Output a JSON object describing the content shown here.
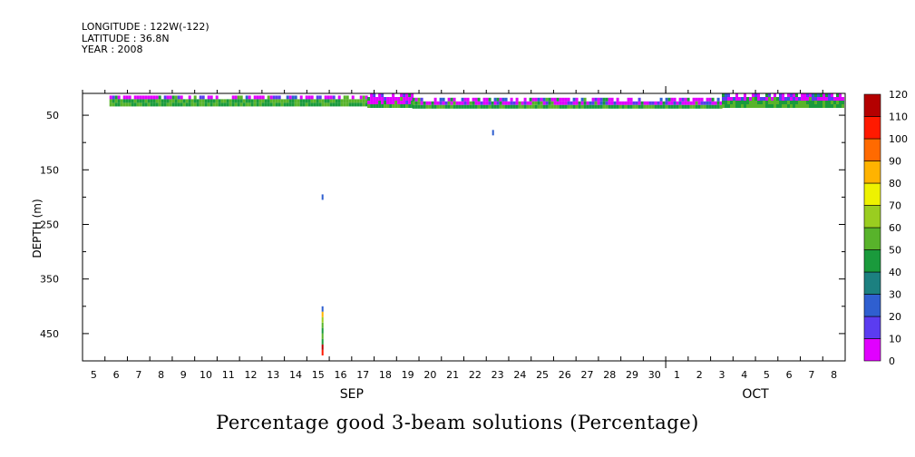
{
  "header": {
    "longitude": "LONGITUDE : 122W(-122)",
    "latitude": "LATITUDE : 36.8N",
    "year": "YEAR : 2008"
  },
  "chart_data": {
    "type": "heatmap",
    "title": "Percentage good 3-beam solutions (Percentage)",
    "ylabel": "DEPTH (m)",
    "xlabel": "",
    "ylim": [
      500,
      10
    ],
    "y_ticks": [
      50,
      150,
      250,
      350,
      450
    ],
    "x_days": [
      "5",
      "6",
      "7",
      "8",
      "9",
      "10",
      "11",
      "12",
      "13",
      "14",
      "15",
      "16",
      "17",
      "18",
      "19",
      "20",
      "21",
      "22",
      "23",
      "24",
      "25",
      "26",
      "27",
      "28",
      "29",
      "30",
      "1",
      "2",
      "3",
      "4",
      "5",
      "6",
      "7",
      "8"
    ],
    "x_range_days": [
      4.5,
      38.5
    ],
    "month_labels": [
      {
        "label": "SEP",
        "at_day": 16.5
      },
      {
        "label": "OCT",
        "at_day": 34.5
      }
    ],
    "colorbar": {
      "levels": [
        0,
        10,
        20,
        30,
        40,
        50,
        60,
        70,
        80,
        90,
        100,
        110,
        120
      ],
      "colors": [
        "#e100ff",
        "#5b3cf0",
        "#2f5fd0",
        "#1c8080",
        "#1a9a3c",
        "#58b32b",
        "#9acd20",
        "#eef200",
        "#ffb300",
        "#ff6a00",
        "#ff1a00",
        "#b40000"
      ]
    },
    "surface_band": {
      "description_note": "near-surface band of low values (mostly 0-20%) with some 40-60%",
      "segments": [
        {
          "day_start": 5.7,
          "day_end": 17.2,
          "depth_top": 14,
          "depth_bottom": 30
        },
        {
          "day_start": 17.2,
          "day_end": 19.2,
          "depth_top": 10,
          "depth_bottom": 35
        },
        {
          "day_start": 19.2,
          "day_end": 33.0,
          "depth_top": 18,
          "depth_bottom": 35
        },
        {
          "day_start": 33.0,
          "day_end": 38.4,
          "depth_top": 10,
          "depth_bottom": 30
        }
      ]
    },
    "isolated_points": [
      {
        "day": 22.8,
        "depth": 82,
        "value": 20
      },
      {
        "day": 15.2,
        "depth": 200,
        "value": 20
      },
      {
        "day": 15.2,
        "depth": 405,
        "value": 20
      },
      {
        "day": 15.2,
        "depth": 415,
        "value": 80
      },
      {
        "day": 15.2,
        "depth": 425,
        "value": 60
      },
      {
        "day": 15.2,
        "depth": 435,
        "value": 50
      },
      {
        "day": 15.2,
        "depth": 445,
        "value": 40
      },
      {
        "day": 15.2,
        "depth": 455,
        "value": 50
      },
      {
        "day": 15.2,
        "depth": 465,
        "value": 40
      },
      {
        "day": 15.2,
        "depth": 475,
        "value": 120
      },
      {
        "day": 15.2,
        "depth": 485,
        "value": 100
      }
    ]
  }
}
